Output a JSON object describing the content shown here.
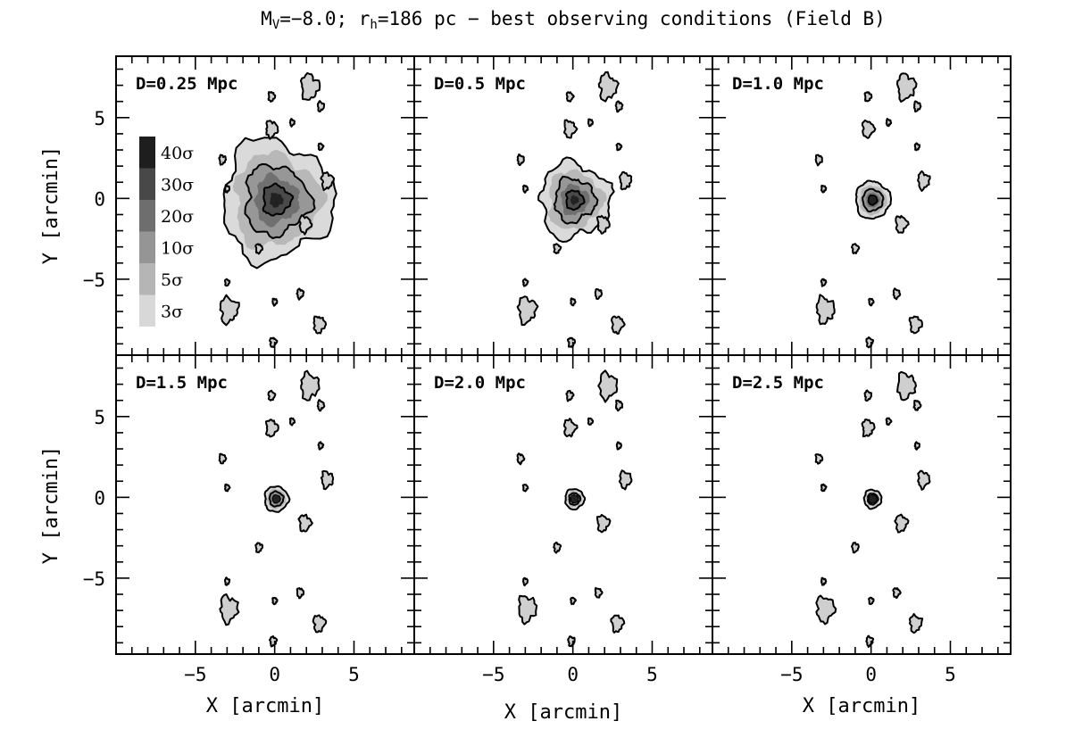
{
  "title": {
    "prefix": "M",
    "sub1": "V",
    "mid": "=−8.0; r",
    "sub2": "h",
    "suffix": "=186 pc − best observing conditions (Field B)"
  },
  "chart_data": {
    "type": "heatmap",
    "layout": "2x3 grid of density maps",
    "xlabel": "X [arcmin]",
    "ylabel": "Y [arcmin]",
    "xlim": [
      -10,
      8.8
    ],
    "ylim": [
      -9.7,
      8.8
    ],
    "xticks": [
      -5,
      0,
      5
    ],
    "yticks": [
      -5,
      0,
      5
    ],
    "panels": [
      {
        "label": "D=0.25 Mpc",
        "core_radius_arcmin": 3.5
      },
      {
        "label": "D=0.5 Mpc",
        "core_radius_arcmin": 2.2
      },
      {
        "label": "D=1.0 Mpc",
        "core_radius_arcmin": 1.1
      },
      {
        "label": "D=1.5 Mpc",
        "core_radius_arcmin": 0.75
      },
      {
        "label": "D=2.0 Mpc",
        "core_radius_arcmin": 0.6
      },
      {
        "label": "D=2.5 Mpc",
        "core_radius_arcmin": 0.55
      }
    ],
    "legend": {
      "placement": "inside top-left panel, left side",
      "levels": [
        {
          "label": "40σ",
          "color": "#1e1e1e"
        },
        {
          "label": "30σ",
          "color": "#484848"
        },
        {
          "label": "20σ",
          "color": "#6e6e6e"
        },
        {
          "label": "10σ",
          "color": "#959595"
        },
        {
          "label": "5σ",
          "color": "#b5b5b5"
        },
        {
          "label": "3σ",
          "color": "#d8d8d8"
        }
      ]
    },
    "background_sources": [
      {
        "x": 2.2,
        "y": 6.9
      },
      {
        "x": 2.9,
        "y": 5.7
      },
      {
        "x": 1.1,
        "y": 4.7
      },
      {
        "x": -0.2,
        "y": 4.3
      },
      {
        "x": -0.2,
        "y": 6.3
      },
      {
        "x": 2.9,
        "y": 3.2
      },
      {
        "x": 3.3,
        "y": 1.1
      },
      {
        "x": -3.3,
        "y": 2.4
      },
      {
        "x": -3.0,
        "y": 0.6
      },
      {
        "x": 1.9,
        "y": -1.6
      },
      {
        "x": -1.0,
        "y": -3.1
      },
      {
        "x": -3.0,
        "y": -5.2
      },
      {
        "x": -2.9,
        "y": -6.9
      },
      {
        "x": 1.6,
        "y": -5.9
      },
      {
        "x": 0.0,
        "y": -6.4
      },
      {
        "x": 2.8,
        "y": -7.8
      },
      {
        "x": -0.1,
        "y": -8.9
      }
    ]
  }
}
